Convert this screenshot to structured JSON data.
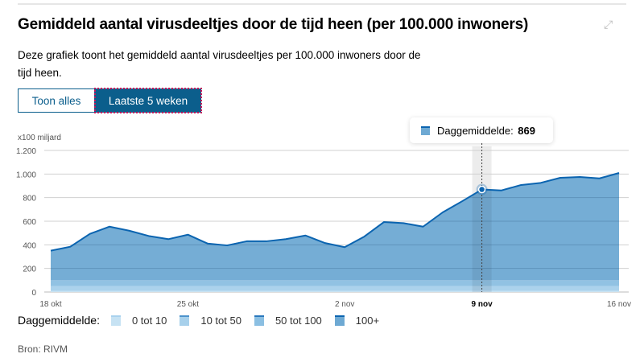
{
  "title": "Gemiddeld aantal virusdeeltjes door de tijd heen (per 100.000 inwoners)",
  "description": "Deze grafiek toont het gemiddeld aantal virusdeeltjes per 100.000 inwoners door de tijd heen.",
  "buttons": {
    "show_all": "Toon alles",
    "last_5_weeks": "Laatste 5 weken"
  },
  "tooltip": {
    "label": "Daggemiddelde:",
    "value": "869"
  },
  "legend": {
    "label": "Daggemiddelde:",
    "items": [
      {
        "label": "0 tot 10",
        "color": "#c6e2f3",
        "border": "#a9d2ee"
      },
      {
        "label": "10 tot 50",
        "color": "#a7d0eb",
        "border": "#4d93cc"
      },
      {
        "label": "50 tot 100",
        "color": "#8bbfe2",
        "border": "#2a78bd"
      },
      {
        "label": "100+",
        "color": "#6ea9d3",
        "border": "#0b64b0"
      }
    ]
  },
  "source": "Bron: RIVM",
  "chart_data": {
    "type": "area",
    "title": "Gemiddeld aantal virusdeeltjes door de tijd heen (per 100.000 inwoners)",
    "ylabel": "x100 miljard",
    "ylim": [
      0,
      1200
    ],
    "yticks": [
      0,
      200,
      400,
      600,
      800,
      1000,
      1200
    ],
    "ytick_labels": [
      "0",
      "200",
      "400",
      "600",
      "800",
      "1.000",
      "1.200"
    ],
    "xtick_labels": [
      {
        "day": 0,
        "label": "18 okt"
      },
      {
        "day": 7,
        "label": "25 okt"
      },
      {
        "day": 15,
        "label": "2 nov"
      },
      {
        "day": 22,
        "label": "9 nov",
        "bold": true
      },
      {
        "day": 29,
        "label": "16 nov"
      }
    ],
    "x_start": "18 okt",
    "x_end": "16 nov",
    "highlight_day": 22,
    "bands": [
      {
        "from": 0,
        "to": 10
      },
      {
        "from": 10,
        "to": 50
      },
      {
        "from": 50,
        "to": 100
      },
      {
        "from": 100,
        "to": 1200
      }
    ],
    "line_color": "#0b64b0",
    "values": [
      350,
      384,
      493,
      554,
      520,
      475,
      448,
      486,
      411,
      395,
      430,
      430,
      448,
      479,
      415,
      380,
      470,
      593,
      584,
      554,
      675,
      770,
      869,
      861,
      907,
      925,
      968,
      975,
      963,
      1009
    ]
  }
}
